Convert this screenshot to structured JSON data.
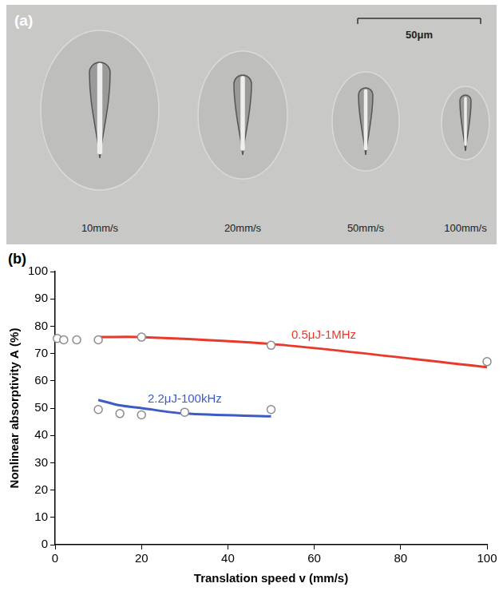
{
  "panel_a": {
    "label": "(a)",
    "scale_bar_label": "50μm",
    "labels": [
      "10mm/s",
      "20mm/s",
      "50mm/s",
      "100mm/s"
    ]
  },
  "chart_data": {
    "type": "scatter",
    "panel_label": "(b)",
    "x_label": "Translation speed v (mm/s)",
    "y_label": "Nonlinear absorptivity A (%)",
    "xlim": [
      0,
      100
    ],
    "xticks": [
      0,
      20,
      40,
      60,
      80,
      100
    ],
    "ylim": [
      0,
      100
    ],
    "yticks": [
      0,
      10,
      20,
      30,
      40,
      50,
      60,
      70,
      80,
      90,
      100
    ],
    "grid": false,
    "series": [
      {
        "name": "0.5μJ-1MHz",
        "type": "line",
        "line_style": "solid",
        "color": "#e8392b",
        "x": [
          10,
          20,
          50,
          100
        ],
        "values": [
          76,
          76,
          73.5,
          65
        ]
      },
      {
        "type": "scatter",
        "marker": "open_circle",
        "color": "#8c8c8c",
        "x": [
          0.5,
          2,
          5,
          10,
          20,
          50,
          100
        ],
        "values": [
          75.5,
          75,
          75,
          75,
          76,
          73,
          67
        ]
      },
      {
        "name": "2.2μJ-100kHz",
        "type": "line",
        "line_style": "solid",
        "color": "#3c5bc4",
        "x": [
          10,
          15,
          20,
          30,
          50
        ],
        "values": [
          53,
          51,
          50,
          48,
          47
        ]
      },
      {
        "type": "scatter",
        "marker": "open_circle",
        "color": "#8c8c8c",
        "x": [
          10,
          15,
          20,
          30,
          50
        ],
        "values": [
          49.5,
          48,
          47.5,
          48.5,
          49.5
        ]
      }
    ]
  }
}
